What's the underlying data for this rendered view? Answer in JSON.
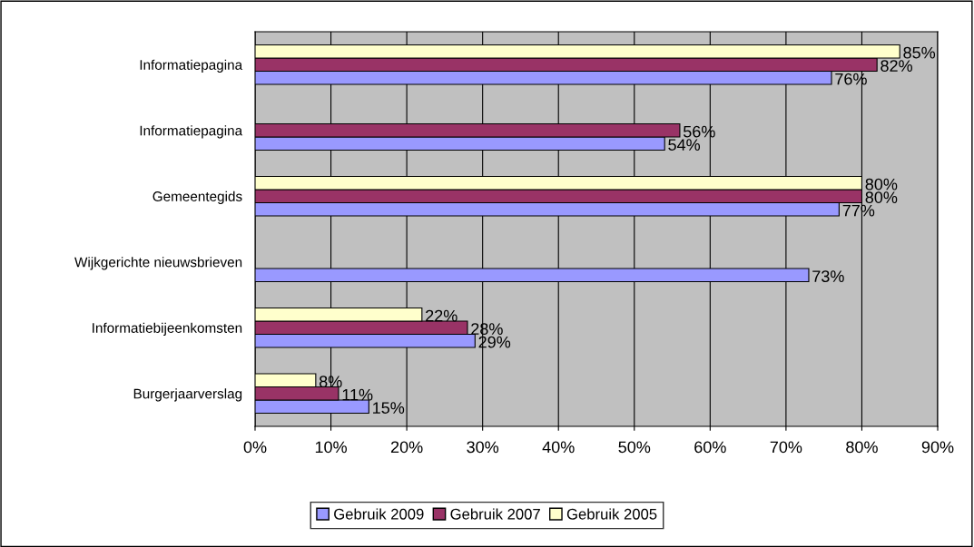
{
  "chart_data": {
    "type": "bar",
    "orientation": "horizontal",
    "categories": [
      "Informatiepagina",
      "Informatiepagina",
      "Gemeentegids",
      "Wijkgerichte nieuwsbrieven",
      "Informatiebijeenkomsten",
      "Burgerjaarverslag"
    ],
    "series": [
      {
        "name": "Gebruik 2009",
        "color": "#9999ff",
        "values": [
          76,
          54,
          77,
          73,
          29,
          15
        ],
        "value_labels": [
          "76%",
          "54%",
          "77%",
          "73%",
          "29%",
          "15%"
        ]
      },
      {
        "name": "Gebruik 2007",
        "color": "#993366",
        "values": [
          82,
          56,
          80,
          null,
          28,
          11
        ],
        "value_labels": [
          "82%",
          "56%",
          "80%",
          null,
          "28%",
          "11%"
        ]
      },
      {
        "name": "Gebruik 2005",
        "color": "#ffffcc",
        "values": [
          85,
          null,
          80,
          null,
          22,
          8
        ],
        "value_labels": [
          "85%",
          null,
          "80%",
          null,
          "22%",
          "8%"
        ]
      }
    ],
    "xlim": [
      0,
      90
    ],
    "xticks": [
      {
        "value": 0,
        "label": "0%"
      },
      {
        "value": 10,
        "label": "10%"
      },
      {
        "value": 20,
        "label": "20%"
      },
      {
        "value": 30,
        "label": "30%"
      },
      {
        "value": 40,
        "label": "40%"
      },
      {
        "value": 50,
        "label": "50%"
      },
      {
        "value": 60,
        "label": "60%"
      },
      {
        "value": 70,
        "label": "70%"
      },
      {
        "value": 80,
        "label": "80%"
      },
      {
        "value": 90,
        "label": "90%"
      }
    ],
    "grid": "x",
    "legend": "bottom"
  }
}
